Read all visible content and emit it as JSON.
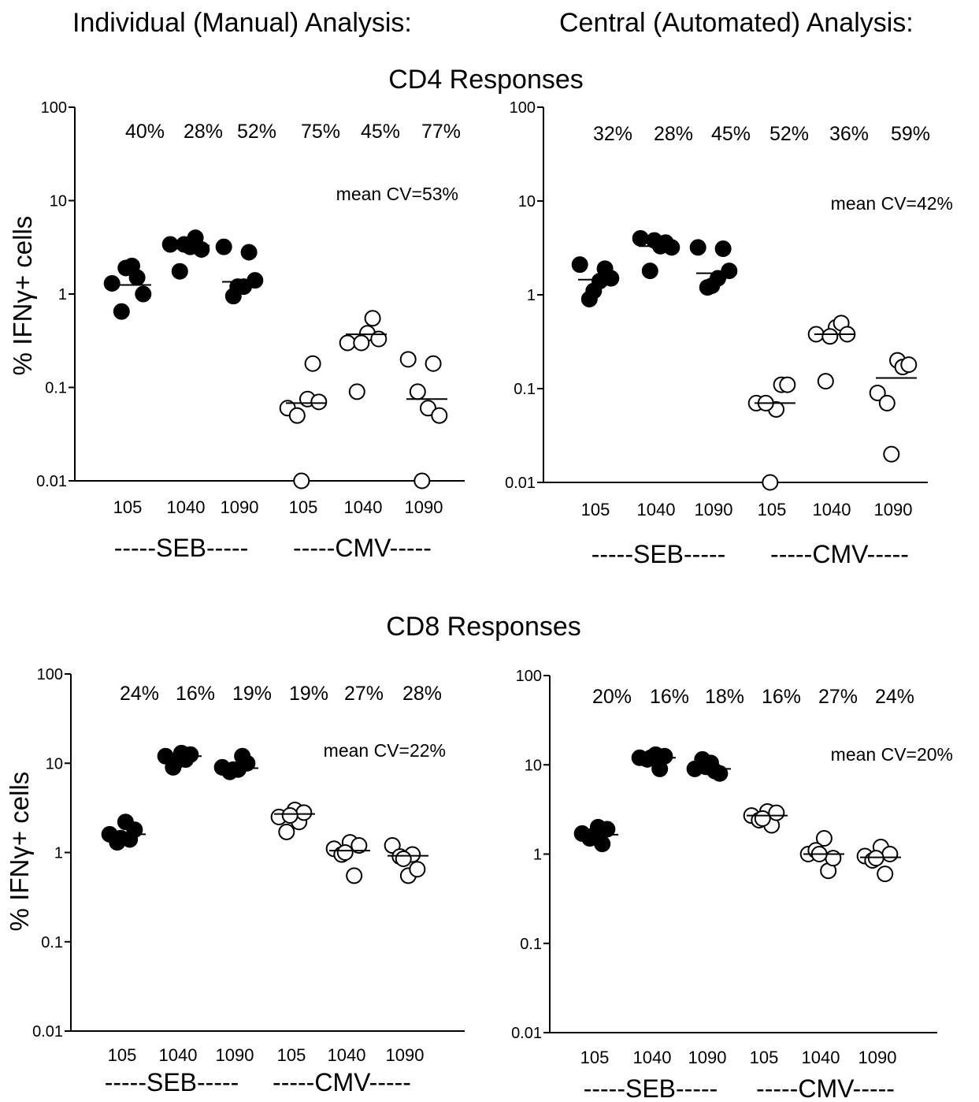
{
  "headers": {
    "left": "Individual (Manual) Analysis:",
    "right": "Central (Automated) Analysis:"
  },
  "row_titles": {
    "cd4": "CD4 Responses",
    "cd8": "CD8 Responses"
  },
  "ylabel": "% IFNγ+ cells",
  "chart_data": [
    {
      "type": "scatter",
      "row": "CD4 Responses",
      "analysis": "Individual (Manual) Analysis",
      "yscale": "log",
      "ylim": [
        0.01,
        100
      ],
      "yticks": [
        "100",
        "10",
        "1",
        "0.1",
        "0.01"
      ],
      "categories": [
        "105",
        "1040",
        "1090",
        "105",
        "1040",
        "1090"
      ],
      "groups": [
        {
          "label": "-----SEB-----",
          "color": "#000000"
        },
        {
          "label": "-----CMV-----",
          "color": "#ffffff"
        }
      ],
      "cv_labels": [
        "40%",
        "28%",
        "52%",
        "75%",
        "45%",
        "77%"
      ],
      "mean_cv": "mean CV=53%",
      "points": [
        [
          1.3,
          2.0,
          1.5,
          0.65,
          1.0,
          1.9
        ],
        [
          3.4,
          3.2,
          4.0,
          1.75,
          3.0,
          3.4
        ],
        [
          3.2,
          1.2,
          2.8,
          0.95,
          1.4,
          1.2
        ],
        [
          0.06,
          0.075,
          0.18,
          0.05,
          0.07,
          0.01
        ],
        [
          0.3,
          0.38,
          0.55,
          0.09,
          0.33,
          0.3
        ],
        [
          0.2,
          0.06,
          0.18,
          0.09,
          0.05,
          0.01
        ]
      ],
      "medians": [
        1.25,
        3.3,
        1.35,
        0.068,
        0.37,
        0.075
      ]
    },
    {
      "type": "scatter",
      "row": "CD4 Responses",
      "analysis": "Central (Automated) Analysis",
      "yscale": "log",
      "ylim": [
        0.01,
        100
      ],
      "yticks": [
        "100",
        "10",
        "1",
        "0.1",
        "0.01"
      ],
      "categories": [
        "105",
        "1040",
        "1090",
        "105",
        "1040",
        "1090"
      ],
      "groups": [
        {
          "label": "-----SEB-----",
          "color": "#000000"
        },
        {
          "label": "-----CMV-----",
          "color": "#ffffff"
        }
      ],
      "cv_labels": [
        "32%",
        "28%",
        "45%",
        "52%",
        "36%",
        "59%"
      ],
      "mean_cv": "mean CV=42%",
      "points": [
        [
          2.1,
          1.4,
          1.9,
          0.9,
          1.5,
          1.1
        ],
        [
          4.0,
          3.3,
          3.6,
          1.8,
          3.2,
          3.8
        ],
        [
          3.2,
          1.5,
          3.1,
          1.2,
          1.8,
          1.25
        ],
        [
          0.07,
          0.06,
          0.11,
          0.07,
          0.11,
          0.01
        ],
        [
          0.38,
          0.45,
          0.5,
          0.12,
          0.38,
          0.36
        ],
        [
          0.09,
          0.2,
          0.17,
          0.07,
          0.18,
          0.02
        ]
      ],
      "medians": [
        1.45,
        3.3,
        1.7,
        0.07,
        0.38,
        0.13
      ]
    },
    {
      "type": "scatter",
      "row": "CD8 Responses",
      "analysis": "Individual (Manual) Analysis",
      "yscale": "log",
      "ylim": [
        0.01,
        100
      ],
      "yticks": [
        "100",
        "10",
        "1",
        "0.1",
        "0.01"
      ],
      "categories": [
        "105",
        "1040",
        "1090",
        "105",
        "1040",
        "1090"
      ],
      "groups": [
        {
          "label": "-----SEB-----",
          "color": "#000000"
        },
        {
          "label": "-----CMV-----",
          "color": "#ffffff"
        }
      ],
      "cv_labels": [
        "24%",
        "16%",
        "19%",
        "19%",
        "27%",
        "28%"
      ],
      "mean_cv": "mean CV=22%",
      "points": [
        [
          1.6,
          2.2,
          1.4,
          1.3,
          1.8,
          1.45
        ],
        [
          12.0,
          13.0,
          11.0,
          9.0,
          12.5,
          10.5
        ],
        [
          9.0,
          8.5,
          12.0,
          8.0,
          10.0,
          8.5
        ],
        [
          2.5,
          3.0,
          2.2,
          1.7,
          2.8,
          2.6
        ],
        [
          1.1,
          1.3,
          0.55,
          0.95,
          1.2,
          1.0
        ],
        [
          1.2,
          0.55,
          0.95,
          0.9,
          0.65,
          0.85
        ]
      ],
      "medians": [
        1.6,
        12.0,
        8.8,
        2.7,
        1.05,
        0.92
      ]
    },
    {
      "type": "scatter",
      "row": "CD8 Responses",
      "analysis": "Central (Automated) Analysis",
      "yscale": "log",
      "ylim": [
        0.01,
        100
      ],
      "yticks": [
        "100",
        "10",
        "1",
        "0.1",
        "0.01"
      ],
      "categories": [
        "105",
        "1040",
        "1090",
        "105",
        "1040",
        "1090"
      ],
      "groups": [
        {
          "label": "-----SEB-----",
          "color": "#000000"
        },
        {
          "label": "-----CMV-----",
          "color": "#ffffff"
        }
      ],
      "cv_labels": [
        "20%",
        "16%",
        "18%",
        "16%",
        "27%",
        "24%"
      ],
      "mean_cv": "mean CV=20%",
      "points": [
        [
          1.7,
          2.0,
          1.3,
          1.5,
          1.9,
          1.6
        ],
        [
          12.0,
          13.0,
          9.0,
          11.5,
          12.5,
          12.0
        ],
        [
          9.0,
          10.5,
          8.5,
          11.5,
          8.0,
          9.5
        ],
        [
          2.7,
          3.0,
          2.1,
          2.4,
          2.9,
          2.5
        ],
        [
          1.0,
          1.5,
          0.65,
          1.1,
          0.9,
          1.0
        ],
        [
          0.95,
          1.2,
          0.6,
          0.85,
          1.0,
          0.9
        ]
      ],
      "medians": [
        1.65,
        12.0,
        9.0,
        2.7,
        1.0,
        0.92
      ]
    }
  ]
}
